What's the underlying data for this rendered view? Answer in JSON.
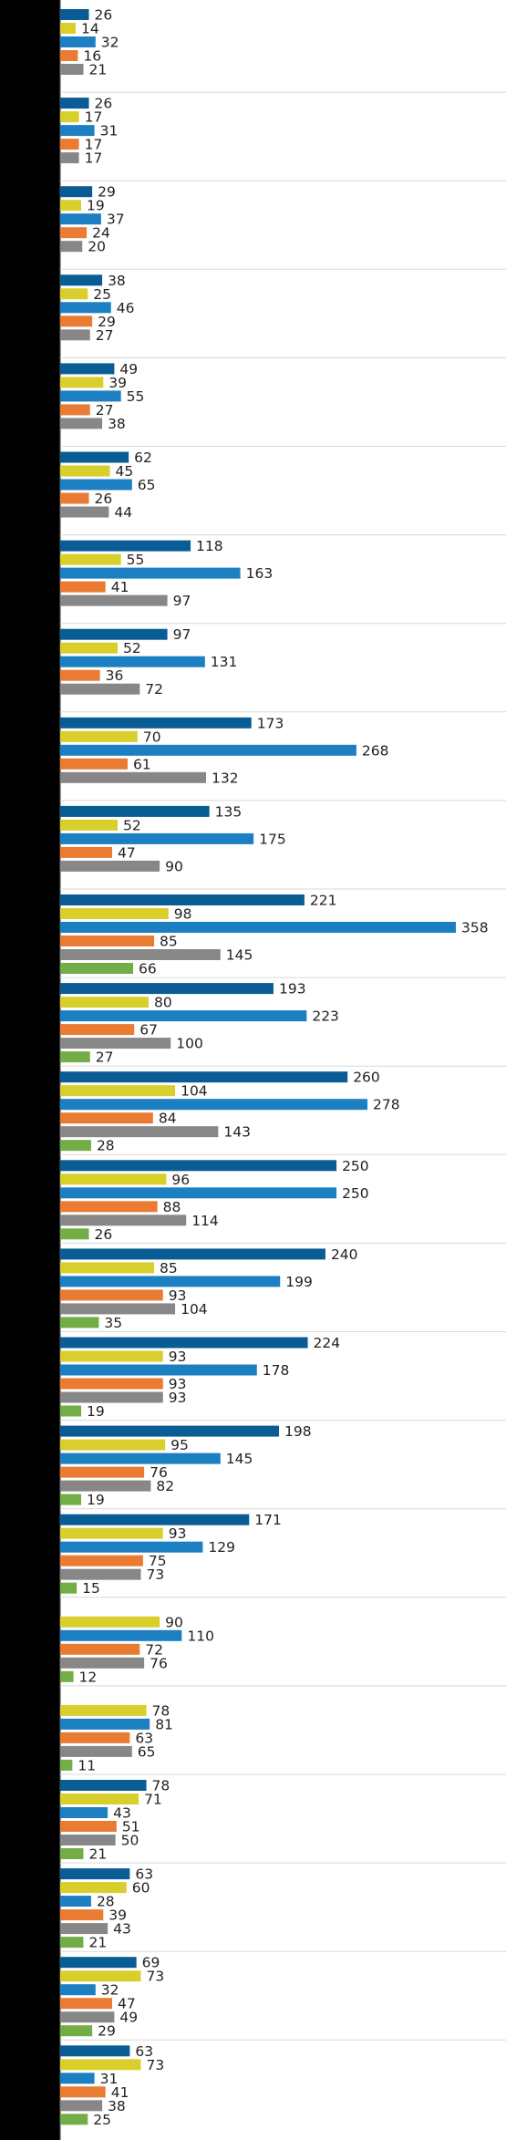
{
  "chart_data": {
    "type": "bar",
    "orientation": "horizontal",
    "title": "",
    "xlabel": "",
    "ylabel": "",
    "xlim": [
      0,
      370
    ],
    "grid": false,
    "legend": "none",
    "colors": [
      "#0a5c94",
      "#d8cf2d",
      "#1c7fc2",
      "#ea7b33",
      "#878787",
      "#72ad45"
    ],
    "groups": [
      [
        26,
        14,
        32,
        16,
        21,
        null
      ],
      [
        26,
        17,
        31,
        17,
        17,
        null
      ],
      [
        29,
        19,
        37,
        24,
        20,
        null
      ],
      [
        38,
        25,
        46,
        29,
        27,
        null
      ],
      [
        49,
        39,
        55,
        27,
        38,
        null
      ],
      [
        62,
        45,
        65,
        26,
        44,
        null
      ],
      [
        118,
        55,
        163,
        41,
        97,
        null
      ],
      [
        97,
        52,
        131,
        36,
        72,
        null
      ],
      [
        173,
        70,
        268,
        61,
        132,
        null
      ],
      [
        135,
        52,
        175,
        47,
        90,
        null
      ],
      [
        221,
        98,
        358,
        85,
        145,
        66
      ],
      [
        193,
        80,
        223,
        67,
        100,
        27
      ],
      [
        260,
        104,
        278,
        84,
        143,
        28
      ],
      [
        250,
        96,
        250,
        88,
        114,
        26
      ],
      [
        240,
        85,
        199,
        93,
        104,
        35
      ],
      [
        224,
        93,
        178,
        93,
        93,
        19
      ],
      [
        198,
        95,
        145,
        76,
        82,
        19
      ],
      [
        171,
        93,
        129,
        75,
        73,
        15
      ],
      [
        null,
        90,
        110,
        72,
        76,
        12
      ],
      [
        null,
        78,
        81,
        63,
        65,
        11
      ],
      [
        78,
        71,
        43,
        51,
        50,
        21
      ],
      [
        63,
        60,
        28,
        39,
        43,
        21
      ],
      [
        69,
        73,
        32,
        47,
        49,
        29
      ],
      [
        63,
        73,
        31,
        41,
        38,
        25
      ]
    ]
  }
}
